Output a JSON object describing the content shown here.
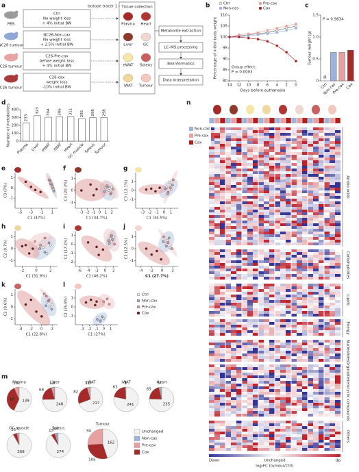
{
  "panel_labels": [
    "a",
    "b",
    "c",
    "d",
    "e",
    "f",
    "g",
    "h",
    "i",
    "j",
    "k",
    "l",
    "m",
    "n"
  ],
  "schematic": {
    "groups": [
      {
        "treatment": "PBS",
        "name": "Ctrl",
        "lines": [
          "No weight loss",
          "+ 4% initial BW"
        ]
      },
      {
        "treatment": "NC26 tumour",
        "name": "NC26-Non-cax",
        "lines": [
          "No weight loss",
          "+ 2.5% initial BW"
        ]
      },
      {
        "treatment": "C26 tumour",
        "name": "C26-Pre-cax",
        "lines": [
          "before weight loss",
          "+ 4% initial BW"
        ]
      },
      {
        "treatment": "C26 tumour",
        "name": "C26-cax",
        "lines": [
          "weight loss",
          "-10% initial BW"
        ]
      }
    ],
    "tracer": "Isotope tracer 1 h",
    "tissue_title": "Tissue collection",
    "tissues": [
      "Plasma",
      "Heart",
      "Liver",
      "GC",
      "eWAT",
      "Soleus",
      "iWAT",
      "Tumour"
    ],
    "steps": [
      "Metabolite extraction",
      "LC–MS processing",
      "Bioinformatics",
      "Data interpretation"
    ]
  },
  "chart_data": [
    {
      "type": "line",
      "xlabel": "Days before euthanasia",
      "ylabel": "Percentage of initial body weight",
      "annotation": [
        "Group effect:",
        "P = 0.0003"
      ],
      "x": [
        14,
        12,
        10,
        8,
        6,
        4,
        2,
        0
      ],
      "xlim": [
        14,
        0
      ],
      "xticks": [
        14,
        12,
        10,
        8,
        6,
        4,
        2,
        0
      ],
      "ylim": [
        80,
        110
      ],
      "yticks": [
        80,
        85,
        90,
        95,
        100,
        105,
        110
      ],
      "series": [
        {
          "name": "Ctrl",
          "color": "#ffffff",
          "values": [
            100,
            100.5,
            101,
            101.5,
            102,
            103,
            104,
            105
          ]
        },
        {
          "name": "Non-cas",
          "color": "#9db3dc",
          "values": [
            100,
            100,
            100.5,
            101,
            101.5,
            102,
            103,
            104
          ]
        },
        {
          "name": "Pre-cax",
          "color": "#e8a0a0",
          "values": [
            100,
            101,
            101.5,
            102,
            103,
            104,
            105,
            106
          ]
        },
        {
          "name": "Cax",
          "color": "#a52a2a",
          "values": [
            100,
            100,
            99.5,
            99,
            98,
            96,
            93,
            89
          ]
        }
      ]
    },
    {
      "type": "bar",
      "ylabel": "Tumour weight (g)",
      "annotation": "P = 0.9834",
      "categories": [
        "Ctrl",
        "Non-cas",
        "Pre-cax",
        "Cax"
      ],
      "values": [
        0,
        0.65,
        0.65,
        0.7
      ],
      "value_labels": [
        "Ø",
        null,
        null,
        null
      ],
      "colors": [
        "#ffffff",
        "#9db3dc",
        "#e8a0a0",
        "#a52a2a"
      ],
      "ylim": [
        0,
        1.5
      ],
      "yticks": [
        0,
        0.5,
        {
          "value": 1,
          "label": "1.0"
        },
        1.5
      ]
    },
    {
      "type": "bar",
      "ylabel": "Number of metabolites",
      "categories": [
        "Plasma",
        "Liver",
        "eWAT",
        "iWAT",
        "Heart",
        "GC-muscle",
        "Soleus",
        "Tumour"
      ],
      "values": [
        233,
        323,
        304,
        306,
        311,
        285,
        298,
        298
      ],
      "color": "#ffffff",
      "ylim": [
        0,
        400
      ],
      "yticks": [
        0,
        100,
        200,
        300,
        400
      ]
    },
    {
      "type": "scatter",
      "xlabel": "C1 (47%)",
      "ylabel": "C3 (7%)",
      "xlim": [
        -6,
        2
      ],
      "xticks": [
        -5,
        -3,
        -1,
        1
      ],
      "ylim": [
        -2,
        1.5
      ],
      "yticks": [
        -1,
        0,
        1
      ],
      "series": [
        {
          "x": [
            0.8,
            1,
            1.2
          ],
          "values": [
            0.5,
            0.2,
            -0.1
          ]
        },
        {
          "x": [
            0.6,
            0.9,
            1.3
          ],
          "values": [
            0.7,
            0.3,
            -0.3
          ]
        },
        {
          "x": [
            0.4,
            0.7,
            1.1
          ],
          "values": [
            0.8,
            0.4,
            0
          ]
        },
        {
          "x": [
            -4,
            -3,
            -2.2,
            -1.2
          ],
          "values": [
            0.6,
            0.1,
            -0.2,
            -0.4
          ]
        }
      ]
    },
    {
      "type": "scatter",
      "xlabel": "C1 (34.7%)",
      "ylabel": "C3 (20.3%)",
      "xlim": [
        -4,
        3
      ],
      "xticks": [
        -3,
        -2,
        -1,
        0,
        1,
        2
      ],
      "ylim": [
        -1.5,
        1.5
      ],
      "yticks": [
        -1,
        0,
        1
      ],
      "series": [
        {
          "x": [
            1,
            1.5,
            2
          ],
          "values": [
            0.2,
            0,
            0.3
          ]
        },
        {
          "x": [
            0.8,
            1.4,
            1.8
          ],
          "values": [
            -0.1,
            0.3,
            -0.3
          ]
        },
        {
          "x": [
            1.2,
            1.9,
            2.2
          ],
          "values": [
            0.4,
            -0.2,
            0.1
          ]
        },
        {
          "x": [
            -3,
            -1.5,
            -1,
            -0.5
          ],
          "values": [
            0,
            0.5,
            -0.4,
            0.1
          ]
        }
      ]
    },
    {
      "type": "scatter",
      "xlabel": "C1 (34.5%)",
      "ylabel": "C3 (12.1%)",
      "xlim": [
        -4,
        2
      ],
      "xticks": [
        -3,
        -2,
        -1,
        0,
        1
      ],
      "ylim": [
        -2,
        2
      ],
      "yticks": [
        -1,
        0,
        1
      ],
      "series": [
        {
          "x": [
            0.4,
            0.8,
            1
          ],
          "values": [
            0.4,
            0.9,
            0.1
          ]
        },
        {
          "x": [
            0.2,
            0.6,
            1.2
          ],
          "values": [
            0.2,
            -0.2,
            0.6
          ]
        },
        {
          "x": [
            0.5,
            0.9,
            1.3
          ],
          "values": [
            -0.4,
            0.3,
            1.2
          ]
        },
        {
          "x": [
            -2.5,
            -1.8,
            -1.2,
            -0.6
          ],
          "values": [
            0.1,
            0.2,
            -0.1,
            0.3
          ]
        }
      ]
    },
    {
      "type": "scatter",
      "xlabel": "C1 (31.9%)",
      "ylabel": "C2 (9.7%)",
      "xlim": [
        -3,
        3
      ],
      "xticks": [
        -2,
        0,
        2
      ],
      "ylim": [
        -1.5,
        1.5
      ],
      "yticks": [
        -1,
        0,
        1
      ],
      "series": [
        {
          "x": [
            1,
            1.5,
            2
          ],
          "values": [
            0.1,
            -0.4,
            0.3
          ]
        },
        {
          "x": [
            0.5,
            1.2,
            1.8
          ],
          "values": [
            0,
            -0.3,
            0.5
          ]
        },
        {
          "x": [
            -0.2,
            0.6,
            1.2
          ],
          "values": [
            0.6,
            0.3,
            0.9
          ]
        },
        {
          "x": [
            -2,
            -1.5,
            -1,
            -0.5
          ],
          "values": [
            0.2,
            0.3,
            -0.4,
            0
          ]
        }
      ]
    },
    {
      "type": "scatter",
      "xlabel": "C1 (46.2%)",
      "ylabel": "C2 (17.2%)",
      "xlim": [
        -7,
        3
      ],
      "xticks": [
        -6,
        -4,
        -2,
        0,
        2
      ],
      "ylim": [
        -2.5,
        1.5
      ],
      "yticks": [
        -2,
        -1,
        0,
        1
      ],
      "series": [
        {
          "x": [
            1.2,
            1.6,
            2
          ],
          "values": [
            0.6,
            0.3,
            0.8
          ]
        },
        {
          "x": [
            1,
            1.8,
            1.4
          ],
          "values": [
            0.1,
            0.5,
            0.9
          ]
        },
        {
          "x": [
            0.8,
            1.5,
            2.2
          ],
          "values": [
            0.4,
            1,
            0
          ]
        },
        {
          "x": [
            -4,
            -2,
            -1.5,
            -0.5
          ],
          "values": [
            0.2,
            -0.3,
            -1.2,
            -0.6
          ]
        }
      ]
    },
    {
      "type": "scatter",
      "xlabel": "C1 (27.7%)",
      "ylabel": "C2 (12.5%)",
      "xlim": [
        -5,
        3
      ],
      "xticks": [
        -4,
        -2,
        0,
        2
      ],
      "ylim": [
        -1.5,
        1.5
      ],
      "yticks": [
        -1,
        0,
        1
      ],
      "series": [
        {
          "x": [
            0.5,
            1,
            1.5
          ],
          "values": [
            0.4,
            0.7,
            0.1
          ]
        },
        {
          "x": [
            0.2,
            0.8,
            1.3
          ],
          "values": [
            0.6,
            0.2,
            0.9
          ]
        },
        {
          "x": [
            0.3,
            1.1,
            1.8
          ],
          "values": [
            1,
            0.5,
            0
          ]
        },
        {
          "x": [
            -3,
            -2,
            -1,
            -0.2
          ],
          "values": [
            0,
            -0.5,
            -0.2,
            -0.9
          ]
        }
      ]
    },
    {
      "type": "scatter",
      "xlabel": "C1 (22.8%)",
      "ylabel": "C2 (8.6%)",
      "xlim": [
        -5,
        3
      ],
      "xticks": [
        -4,
        -2,
        0,
        2
      ],
      "ylim": [
        -1.5,
        1.5
      ],
      "yticks": [
        -1,
        0,
        1
      ],
      "series": [
        {
          "x": [
            1,
            1.5,
            2
          ],
          "values": [
            0.4,
            0,
            0.2
          ]
        },
        {
          "x": [
            0.8,
            1.3,
            1.9
          ],
          "values": [
            0.1,
            0.5,
            -0.2
          ]
        },
        {
          "x": [
            0.9,
            1.4,
            0.5
          ],
          "values": [
            0.9,
            0.6,
            1.1
          ]
        },
        {
          "x": [
            -3,
            -2,
            -1,
            0
          ],
          "values": [
            0.2,
            0.6,
            -0.4,
            -0.8
          ]
        }
      ]
    },
    {
      "type": "scatter",
      "xlabel": "C1 (27%)",
      "ylabel": "C2 (35.8%)",
      "xlim": [
        -4,
        2
      ],
      "xticks": [
        -3,
        -2,
        -1,
        0,
        1
      ],
      "ylim": [
        -2,
        2
      ],
      "yticks": [
        -1,
        0,
        1
      ],
      "series": [
        {
          "x": [
            -0.8,
            -0.4,
            0
          ],
          "values": [
            -1.2,
            -1.5,
            -1.3
          ]
        },
        {
          "x": [
            -0.9,
            -0.5,
            -0.2
          ],
          "values": [
            -1.4,
            -1.6,
            -1.1
          ]
        },
        {
          "x": [
            0,
            0.5,
            0.8
          ],
          "values": [
            0.6,
            0.9,
            0.3
          ]
        },
        {
          "x": [
            -2.5,
            -1.8,
            -1.2,
            -1
          ],
          "values": [
            0.5,
            0.8,
            0.2,
            0.6
          ]
        }
      ]
    }
  ],
  "pca_legend": [
    {
      "name": "Ctrl",
      "color": "#ffffff"
    },
    {
      "name": "Non-cax",
      "color": "#9db3dc"
    },
    {
      "name": "Pre-cax",
      "color": "#e8a0a0"
    },
    {
      "name": "Cax",
      "color": "#7a1515"
    }
  ],
  "pies": {
    "type": "pie",
    "categories": [
      "Unchanged",
      "Non-cas",
      "Pre-cax",
      "Cax"
    ],
    "colors": [
      "#f2f2f2",
      "#9db3dc",
      "#e8a0a0",
      "#a52a2a"
    ],
    "charts": [
      {
        "title": "Plasma",
        "values": [
          139,
          1,
          15,
          89
        ]
      },
      {
        "title": "Liver",
        "values": [
          248,
          4,
          12,
          68
        ]
      },
      {
        "title": "eWAT",
        "values": [
          217,
          3,
          11,
          82
        ]
      },
      {
        "title": "iWAT",
        "values": [
          241,
          1,
          3,
          63
        ]
      },
      {
        "title": "Heart",
        "values": [
          235,
          7,
          5,
          65
        ]
      },
      {
        "title": "GC muscle",
        "values": [
          268,
          2,
          7,
          15
        ]
      },
      {
        "title": "Soleus",
        "values": [
          274,
          9,
          5,
          15
        ]
      },
      {
        "title": "Tumour",
        "values": [
          162,
          0,
          94,
          105
        ]
      }
    ]
  },
  "heatmap": {
    "legend": [
      {
        "name": "Non-cas",
        "color": "#9db3dc"
      },
      {
        "name": "Pre-cax",
        "color": "#e8a0a0"
      },
      {
        "name": "Cax",
        "color": "#b01e1e"
      }
    ],
    "groups": [
      "Amino acids",
      "Carbohydrates",
      "Lipids",
      "Energy",
      "Nucleotides",
      "Organoheterocyclic compounds",
      "Others"
    ],
    "colorbar": {
      "low": "Down",
      "mid": "Unchanged",
      "high": "Up",
      "label": "log₂FC (tumour/Ctrl)"
    }
  }
}
